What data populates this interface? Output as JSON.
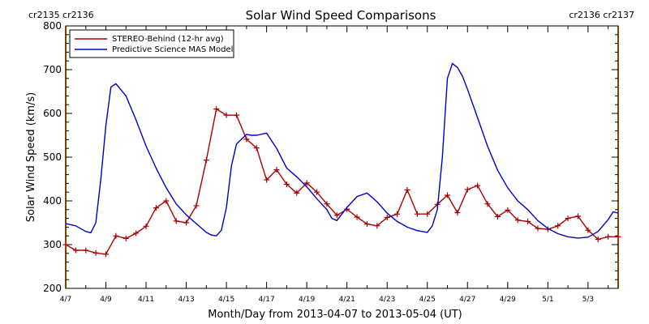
{
  "chart_data": {
    "type": "line",
    "title": "Solar Wind Speed Comparisons",
    "xlabel": "Month/Day from 2013-04-07 to 2013-05-04 (UT)",
    "ylabel": "Solar Wind Speed (km/s)",
    "x_unit": "days from 2013-04-07",
    "xlim": [
      0,
      27.5
    ],
    "ylim": [
      200,
      800
    ],
    "x_ticks": [
      {
        "x": 0,
        "label": "4/7"
      },
      {
        "x": 2,
        "label": "4/9"
      },
      {
        "x": 4,
        "label": "4/11"
      },
      {
        "x": 6,
        "label": "4/13"
      },
      {
        "x": 8,
        "label": "4/15"
      },
      {
        "x": 10,
        "label": "4/17"
      },
      {
        "x": 12,
        "label": "4/19"
      },
      {
        "x": 14,
        "label": "4/21"
      },
      {
        "x": 16,
        "label": "4/23"
      },
      {
        "x": 18,
        "label": "4/25"
      },
      {
        "x": 20,
        "label": "4/27"
      },
      {
        "x": 22,
        "label": "4/29"
      },
      {
        "x": 24,
        "label": "5/1"
      },
      {
        "x": 26,
        "label": "5/3"
      }
    ],
    "y_ticks": [
      200,
      300,
      400,
      500,
      600,
      700,
      800
    ],
    "grid": false,
    "legend_position": "top-left",
    "carrington": {
      "left_label": "cr2135 cr2136",
      "right_label": "cr2136 cr2137",
      "left_x": 0,
      "right_x": 27.5,
      "color": "#ff8c00"
    },
    "series": [
      {
        "name": "STEREO-Behind (12-hr avg)",
        "color": "#aa0000",
        "marker": "plus",
        "x": [
          0,
          0.5,
          1.0,
          1.5,
          2.0,
          2.5,
          3.0,
          3.5,
          4.0,
          4.5,
          5.0,
          5.5,
          6.0,
          6.5,
          7.0,
          7.5,
          8.0,
          8.5,
          9.0,
          9.5,
          10.0,
          10.5,
          11.0,
          11.5,
          12.0,
          12.5,
          13.0,
          13.5,
          14.0,
          14.5,
          15.0,
          15.5,
          16.0,
          16.5,
          17.0,
          17.5,
          18.0,
          18.5,
          19.0,
          19.5,
          20.0,
          20.5,
          21.0,
          21.5,
          22.0,
          22.5,
          23.0,
          23.5,
          24.0,
          24.5,
          25.0,
          25.5,
          26.0,
          26.5,
          27.0,
          27.5
        ],
        "y": [
          300,
          287,
          287,
          281,
          278,
          320,
          314,
          326,
          342,
          384,
          400,
          354,
          350,
          389,
          493,
          610,
          596,
          596,
          541,
          521,
          448,
          471,
          438,
          418,
          441,
          420,
          393,
          367,
          381,
          363,
          347,
          343,
          362,
          370,
          425,
          370,
          370,
          392,
          413,
          373,
          426,
          435,
          393,
          364,
          379,
          356,
          353,
          337,
          335,
          343,
          360,
          365,
          333,
          312,
          318,
          318
        ]
      },
      {
        "name": "Predictive Science MAS Model",
        "color": "#0000cc",
        "marker": "none",
        "x": [
          0,
          0.5,
          1.0,
          1.25,
          1.5,
          1.75,
          2.0,
          2.25,
          2.5,
          3.0,
          3.5,
          4.0,
          4.5,
          5.0,
          5.5,
          6.0,
          6.5,
          7.0,
          7.25,
          7.5,
          7.75,
          8.0,
          8.25,
          8.5,
          9.0,
          9.25,
          9.5,
          10.0,
          10.5,
          11.0,
          11.5,
          12.0,
          12.5,
          13.0,
          13.25,
          13.5,
          14.0,
          14.5,
          15.0,
          15.5,
          16.0,
          16.5,
          17.0,
          17.5,
          18.0,
          18.25,
          18.5,
          18.75,
          19.0,
          19.25,
          19.5,
          19.75,
          20.0,
          20.5,
          21.0,
          21.5,
          22.0,
          22.5,
          23.0,
          23.5,
          24.0,
          24.5,
          25.0,
          25.5,
          26.0,
          26.5,
          27.0,
          27.25,
          27.5
        ],
        "y": [
          348,
          343,
          330,
          327,
          350,
          450,
          572,
          660,
          668,
          640,
          585,
          525,
          475,
          430,
          393,
          368,
          348,
          328,
          322,
          320,
          333,
          385,
          480,
          530,
          552,
          550,
          550,
          555,
          520,
          475,
          455,
          432,
          405,
          380,
          360,
          355,
          385,
          410,
          418,
          398,
          372,
          353,
          340,
          332,
          328,
          343,
          380,
          500,
          680,
          714,
          705,
          685,
          655,
          590,
          525,
          470,
          430,
          400,
          380,
          355,
          337,
          325,
          318,
          315,
          317,
          330,
          357,
          375,
          372
        ]
      }
    ]
  }
}
